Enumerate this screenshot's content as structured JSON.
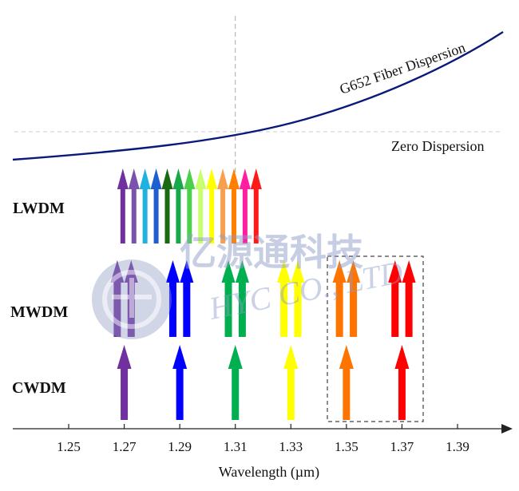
{
  "labels": {
    "curve": "G652 Fiber Dispersion",
    "zero": "Zero Dispersion",
    "rows": [
      "LWDM",
      "MWDM",
      "CWDM"
    ],
    "xlabel": "Wavelength (µm)",
    "watermark_cn": "亿源通科技",
    "watermark_en": "HYC CO., LTD"
  },
  "axis": {
    "ticks": [
      1.25,
      1.27,
      1.29,
      1.31,
      1.33,
      1.35,
      1.37,
      1.39
    ],
    "tick_labels": [
      "1.25",
      "1.27",
      "1.29",
      "1.31",
      "1.33",
      "1.35",
      "1.37",
      "1.39"
    ],
    "xmin": 1.23,
    "xmax": 1.405,
    "zero_dispersion_wavelength": 1.31
  },
  "rows": {
    "lwdm": {
      "wavelengths": [
        1.2695,
        1.2735,
        1.2775,
        1.2815,
        1.2855,
        1.2895,
        1.2935,
        1.2975,
        1.3015,
        1.3055,
        1.3095,
        1.3135,
        1.3175
      ],
      "colors": [
        "#7030a0",
        "#7b52ab",
        "#1fb2e0",
        "#1f5fd0",
        "#1a6a12",
        "#18a84a",
        "#4cd04c",
        "#c8ff6e",
        "#ffff00",
        "#f7a050",
        "#ff8000",
        "#ff1ea0",
        "#ff1a1a"
      ]
    },
    "mwdm": {
      "wavelengths": [
        1.2675,
        1.2725,
        1.2875,
        1.2925,
        1.3075,
        1.3125,
        1.3275,
        1.3325,
        1.3475,
        1.3525,
        1.3675,
        1.3725
      ],
      "colors": [
        "#7030a0",
        "#7030a0",
        "#0000ff",
        "#0000ff",
        "#00b050",
        "#00b050",
        "#ffff00",
        "#ffff00",
        "#ff7400",
        "#ff7400",
        "#ff0000",
        "#ff0000"
      ]
    },
    "cwdm": {
      "wavelengths": [
        1.27,
        1.29,
        1.31,
        1.33,
        1.35,
        1.37
      ],
      "colors": [
        "#7030a0",
        "#0000ff",
        "#00b050",
        "#ffff00",
        "#ff7400",
        "#ff0000"
      ]
    }
  },
  "colors": {
    "curve": "#0a1a7a",
    "axis": "#222222",
    "guide": "#aaaaaa",
    "box": "#444444",
    "watermark": "#8e9bc6"
  }
}
